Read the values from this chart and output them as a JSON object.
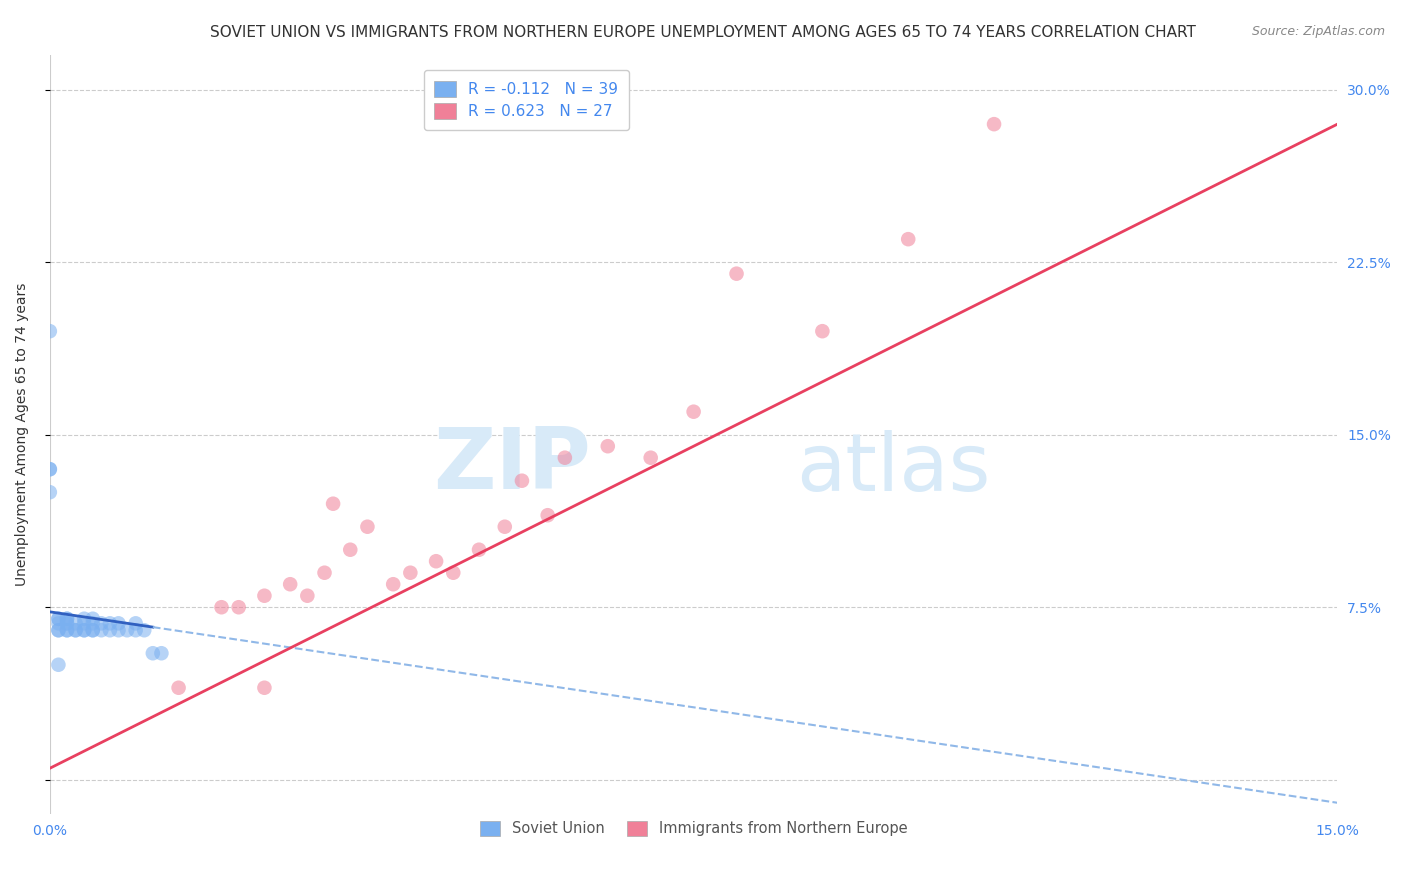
{
  "title": "SOVIET UNION VS IMMIGRANTS FROM NORTHERN EUROPE UNEMPLOYMENT AMONG AGES 65 TO 74 YEARS CORRELATION CHART",
  "source": "Source: ZipAtlas.com",
  "ylabel": "Unemployment Among Ages 65 to 74 years",
  "xlabel_bottom_left": "0.0%",
  "xlabel_bottom_right": "15.0%",
  "xmin": 0.0,
  "xmax": 0.15,
  "ymin": -0.015,
  "ymax": 0.315,
  "yticks": [
    0.0,
    0.075,
    0.15,
    0.225,
    0.3
  ],
  "ytick_labels": [
    "",
    "7.5%",
    "15.0%",
    "22.5%",
    "30.0%"
  ],
  "legend_entries": [
    {
      "label": "R = -0.112   N = 39",
      "color": "#a8c8fa"
    },
    {
      "label": "R = 0.623   N = 27",
      "color": "#f8a8b8"
    }
  ],
  "legend_series": [
    "Soviet Union",
    "Immigrants from Northern Europe"
  ],
  "soviet_union_x": [
    0.0,
    0.0,
    0.0,
    0.0,
    0.001,
    0.001,
    0.001,
    0.001,
    0.001,
    0.001,
    0.002,
    0.002,
    0.002,
    0.002,
    0.002,
    0.002,
    0.003,
    0.003,
    0.003,
    0.004,
    0.004,
    0.004,
    0.004,
    0.005,
    0.005,
    0.005,
    0.005,
    0.006,
    0.006,
    0.007,
    0.007,
    0.008,
    0.008,
    0.009,
    0.01,
    0.01,
    0.011,
    0.012,
    0.013
  ],
  "soviet_union_y": [
    0.195,
    0.135,
    0.135,
    0.125,
    0.065,
    0.065,
    0.068,
    0.07,
    0.07,
    0.05,
    0.065,
    0.065,
    0.068,
    0.068,
    0.07,
    0.07,
    0.065,
    0.065,
    0.068,
    0.065,
    0.065,
    0.068,
    0.07,
    0.065,
    0.065,
    0.068,
    0.07,
    0.065,
    0.068,
    0.065,
    0.068,
    0.065,
    0.068,
    0.065,
    0.068,
    0.065,
    0.065,
    0.055,
    0.055
  ],
  "northern_europe_x": [
    0.015,
    0.02,
    0.022,
    0.025,
    0.028,
    0.03,
    0.032,
    0.033,
    0.035,
    0.037,
    0.04,
    0.042,
    0.045,
    0.047,
    0.05,
    0.053,
    0.055,
    0.058,
    0.06,
    0.065,
    0.07,
    0.075,
    0.08,
    0.09,
    0.1,
    0.11,
    0.025
  ],
  "northern_europe_y": [
    0.04,
    0.075,
    0.075,
    0.08,
    0.085,
    0.08,
    0.09,
    0.12,
    0.1,
    0.11,
    0.085,
    0.09,
    0.095,
    0.09,
    0.1,
    0.11,
    0.13,
    0.115,
    0.14,
    0.145,
    0.14,
    0.16,
    0.22,
    0.195,
    0.235,
    0.285,
    0.04
  ],
  "soviet_R": -0.112,
  "soviet_N": 39,
  "northern_R": 0.623,
  "northern_N": 27,
  "dot_size": 110,
  "dot_alpha": 0.55,
  "soviet_color": "#7ab0f0",
  "northern_color": "#f08098",
  "soviet_line_solid_color": "#3060c0",
  "soviet_line_dash_color": "#90b8e8",
  "northern_line_color": "#e84060",
  "bg_color": "#ffffff",
  "grid_color": "#cccccc",
  "watermark_zip": "ZIP",
  "watermark_atlas": "atlas",
  "watermark_color": "#d8eaf8",
  "title_fontsize": 11,
  "axis_label_fontsize": 10,
  "tick_fontsize": 10,
  "source_fontsize": 9,
  "soviet_line_x0": 0.0,
  "soviet_line_y0": 0.073,
  "soviet_line_x1": 0.15,
  "soviet_line_y1": -0.01,
  "northern_line_x0": 0.0,
  "northern_line_y0": 0.005,
  "northern_line_x1": 0.15,
  "northern_line_y1": 0.285
}
